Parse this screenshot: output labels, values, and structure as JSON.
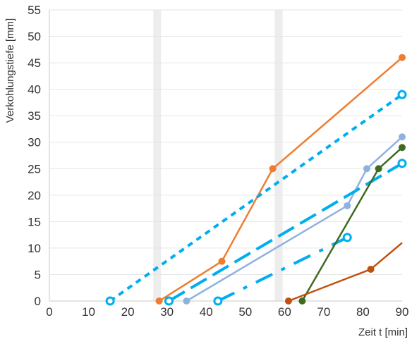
{
  "chart_data": {
    "type": "line",
    "xlabel": "Zeit  t [min]",
    "ylabel": "Verkohlungstiefe [mm]",
    "xlim": [
      0,
      90
    ],
    "ylim": [
      0,
      55
    ],
    "xticks": [
      0,
      10,
      20,
      30,
      40,
      50,
      60,
      70,
      80,
      90
    ],
    "yticks": [
      0,
      5,
      10,
      15,
      20,
      25,
      30,
      35,
      40,
      45,
      50,
      55
    ],
    "grid": "horizontal",
    "shaded_bands": [
      {
        "x0": 26.5,
        "x1": 28.5,
        "color": "#ededed"
      },
      {
        "x0": 57.5,
        "x1": 59.5,
        "color": "#ededed"
      }
    ],
    "series": [
      {
        "color": "#ee7d31",
        "style": "solid",
        "marker": "dot",
        "points": [
          [
            28,
            0
          ],
          [
            44,
            7.5
          ],
          [
            57,
            25
          ],
          [
            90,
            46
          ]
        ]
      },
      {
        "color": "#00aeef",
        "style": "dotted",
        "marker": "ring",
        "points": [
          [
            15.5,
            0
          ],
          [
            90,
            39
          ]
        ]
      },
      {
        "color": "#8fb2dd",
        "style": "solid",
        "marker": "dot",
        "points": [
          [
            35,
            0
          ],
          [
            76,
            18
          ],
          [
            81,
            25
          ],
          [
            90,
            31
          ]
        ]
      },
      {
        "color": "#00aeef",
        "style": "longdash",
        "marker": "ring",
        "points": [
          [
            30.5,
            0
          ],
          [
            90,
            26
          ]
        ]
      },
      {
        "color": "#00aeef",
        "style": "dashdot",
        "marker": "ring",
        "points": [
          [
            43,
            0
          ],
          [
            76,
            12
          ]
        ]
      },
      {
        "color": "#3f6b21",
        "style": "solid",
        "marker": "dot",
        "points": [
          [
            64.5,
            0
          ],
          [
            84,
            25
          ],
          [
            90,
            29
          ]
        ]
      },
      {
        "color": "#c0520d",
        "style": "solid",
        "marker": "dot",
        "points": [
          [
            61,
            0
          ],
          [
            82,
            6
          ]
        ],
        "tail": [
          [
            82,
            6
          ],
          [
            90,
            11
          ]
        ]
      }
    ]
  }
}
